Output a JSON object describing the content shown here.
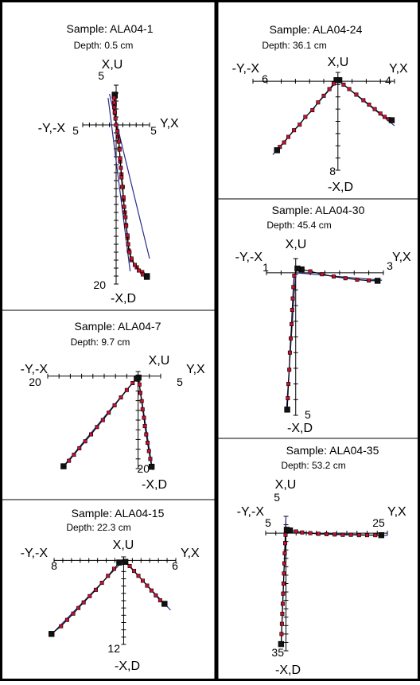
{
  "chart_data": [
    {
      "type": "scatter",
      "sample": "Sample: ALA04-1",
      "depth": "Depth: 0.5 cm",
      "axis_labels": {
        "top": "X,U",
        "bottom": "-X,D",
        "left": "-Y,-X",
        "right": "Y,X"
      },
      "tick_labels": {
        "left": "5",
        "right": "5",
        "top": "5",
        "bottom": "20"
      },
      "xlim": [
        -5,
        5
      ],
      "ylim": [
        -20,
        5
      ],
      "vertical_projection": [
        [
          -0.2,
          3.8
        ],
        [
          -0.3,
          3.4
        ],
        [
          -0.3,
          2.8
        ],
        [
          -0.3,
          2.2
        ],
        [
          -0.2,
          1.6
        ],
        [
          -0.1,
          0.8
        ],
        [
          0,
          0
        ],
        [
          0.2,
          -0.8
        ],
        [
          0.4,
          -2.1
        ],
        [
          0.5,
          -3.1
        ],
        [
          0.6,
          -4.2
        ],
        [
          0.7,
          -5.4
        ],
        [
          0.8,
          -6.6
        ],
        [
          0.9,
          -7.8
        ],
        [
          1.1,
          -9.1
        ],
        [
          1.2,
          -10.3
        ],
        [
          1.4,
          -11.6
        ],
        [
          1.5,
          -12.7
        ],
        [
          1.7,
          -13.9
        ],
        [
          1.8,
          -15.0
        ],
        [
          2.0,
          -16.0
        ],
        [
          2.3,
          -16.8
        ],
        [
          2.8,
          -17.6
        ],
        [
          3.4,
          -18.3
        ],
        [
          4.0,
          -18.8
        ],
        [
          4.6,
          -19.1
        ]
      ],
      "horizontal_projection": [
        [
          -0.2,
          3.7
        ],
        [
          -0.2,
          2.6
        ],
        [
          -0.2,
          1.5
        ],
        [
          0,
          0
        ],
        [
          0.3,
          -1.5
        ],
        [
          0.5,
          -3.0
        ],
        [
          0.6,
          -4.6
        ],
        [
          0.8,
          -6.2
        ],
        [
          1.0,
          -7.8
        ],
        [
          1.1,
          -9.4
        ],
        [
          1.3,
          -11.0
        ],
        [
          1.5,
          -12.6
        ],
        [
          1.7,
          -14.2
        ],
        [
          1.9,
          -15.8
        ],
        [
          2.3,
          -17.0
        ],
        [
          3.1,
          -17.9
        ],
        [
          3.9,
          -18.5
        ],
        [
          4.6,
          -19.0
        ]
      ],
      "fit_lines": [
        [
          [
            -1.2,
            3.4
          ],
          [
            2.1,
            -18.4
          ]
        ],
        [
          [
            -1.0,
            3.9
          ],
          [
            5.0,
            -16.8
          ]
        ]
      ]
    },
    {
      "type": "scatter",
      "sample": "Sample: ALA04-24",
      "depth": "Depth: 36.1 cm",
      "axis_labels": {
        "top": "X,U",
        "bottom": "-X,D",
        "left": "-Y,-X",
        "right": "Y,X"
      },
      "tick_labels": {
        "left": "6",
        "right": "4",
        "top": "",
        "bottom": "8"
      },
      "xlim": [
        -6,
        4
      ],
      "ylim": [
        -8,
        0.8
      ],
      "vertical_projection": [
        [
          -0.1,
          0.1
        ],
        [
          -0.3,
          -0.2
        ],
        [
          -0.6,
          -0.7
        ],
        [
          -1.0,
          -1.3
        ],
        [
          -1.4,
          -1.9
        ],
        [
          -1.8,
          -2.6
        ],
        [
          -2.3,
          -3.2
        ],
        [
          -2.7,
          -3.9
        ],
        [
          -3.1,
          -4.4
        ],
        [
          -3.5,
          -5.0
        ],
        [
          -3.8,
          -5.5
        ],
        [
          -4.1,
          -5.9
        ],
        [
          -4.3,
          -6.2
        ]
      ],
      "horizontal_projection": [
        [
          0.1,
          0.1
        ],
        [
          0.4,
          -0.3
        ],
        [
          0.8,
          -0.7
        ],
        [
          1.3,
          -1.2
        ],
        [
          1.8,
          -1.7
        ],
        [
          2.2,
          -2.1
        ],
        [
          2.6,
          -2.5
        ],
        [
          3.0,
          -2.9
        ],
        [
          3.3,
          -3.2
        ],
        [
          3.6,
          -3.4
        ],
        [
          3.8,
          -3.5
        ]
      ],
      "fit_lines": [
        [
          [
            -4.6,
            -6.6
          ],
          [
            0,
            0.1
          ]
        ],
        [
          [
            0,
            0.1
          ],
          [
            4.0,
            -4.0
          ]
        ]
      ]
    },
    {
      "type": "scatter",
      "sample": "Sample: ALA04-30",
      "depth": "Depth: 45.4 cm",
      "axis_labels": {
        "top": "X,U",
        "bottom": "-X,D",
        "left": "-Y,-X",
        "right": "Y,X"
      },
      "tick_labels": {
        "left": "1",
        "right": "3",
        "top": "",
        "bottom": "5"
      },
      "xlim": [
        -1,
        3
      ],
      "ylim": [
        -5,
        0.5
      ],
      "vertical_projection": [
        [
          0.06,
          0.15
        ],
        [
          -0.05,
          -0.1
        ],
        [
          -0.08,
          -0.5
        ],
        [
          -0.1,
          -0.9
        ],
        [
          -0.12,
          -1.3
        ],
        [
          -0.14,
          -1.8
        ],
        [
          -0.17,
          -2.3
        ],
        [
          -0.2,
          -2.8
        ],
        [
          -0.22,
          -3.4
        ],
        [
          -0.25,
          -3.9
        ],
        [
          -0.27,
          -4.4
        ],
        [
          -0.29,
          -4.8
        ]
      ],
      "horizontal_projection": [
        [
          0.2,
          0.12
        ],
        [
          0.5,
          0.05
        ],
        [
          0.9,
          -0.05
        ],
        [
          1.3,
          -0.13
        ],
        [
          1.7,
          -0.19
        ],
        [
          2.1,
          -0.24
        ],
        [
          2.5,
          -0.27
        ],
        [
          2.8,
          -0.28
        ]
      ],
      "fit_lines": [
        [
          [
            0,
            0
          ],
          [
            -0.32,
            -4.85
          ]
        ],
        [
          [
            0,
            0
          ],
          [
            2.95,
            -0.26
          ]
        ]
      ]
    },
    {
      "type": "scatter",
      "sample": "Sample: ALA04-7",
      "depth": "Depth: 9.7 cm",
      "axis_labels": {
        "top": "X,U",
        "bottom": "-X,D",
        "left": "-Y,-X",
        "right": "Y,X"
      },
      "tick_labels": {
        "left": "20",
        "right": "5",
        "top": "",
        "bottom": "20"
      },
      "xlim": [
        -20,
        5
      ],
      "ylim": [
        -20,
        1
      ],
      "vertical_projection": [
        [
          -0.3,
          -0.5
        ],
        [
          -1.2,
          -1.5
        ],
        [
          -2.5,
          -3.0
        ],
        [
          -3.8,
          -4.6
        ],
        [
          -5.2,
          -6.3
        ],
        [
          -6.5,
          -7.9
        ],
        [
          -7.8,
          -9.5
        ],
        [
          -9.1,
          -11.0
        ],
        [
          -10.4,
          -12.6
        ],
        [
          -11.7,
          -14.1
        ],
        [
          -13.0,
          -15.6
        ],
        [
          -14.2,
          -17.0
        ],
        [
          -15.3,
          -18.3
        ],
        [
          -16.5,
          -19.5
        ]
      ],
      "horizontal_projection": [
        [
          0.1,
          -0.3
        ],
        [
          0.3,
          -1.8
        ],
        [
          0.5,
          -3.6
        ],
        [
          0.8,
          -5.4
        ],
        [
          1.0,
          -7.2
        ],
        [
          1.3,
          -9.0
        ],
        [
          1.5,
          -10.8
        ],
        [
          1.8,
          -12.6
        ],
        [
          2.1,
          -14.4
        ],
        [
          2.4,
          -16.2
        ],
        [
          2.7,
          -17.9
        ],
        [
          3.0,
          -19.6
        ]
      ],
      "fit_lines": [
        [
          [
            -16.8,
            -19.8
          ],
          [
            0,
            0
          ]
        ],
        [
          [
            0,
            0
          ],
          [
            3.2,
            -20.3
          ]
        ]
      ]
    },
    {
      "type": "scatter",
      "sample": "Sample: ALA04-35",
      "depth": "Depth: 53.2 cm",
      "axis_labels": {
        "top": "X,U",
        "bottom": "-X,D",
        "left": "-Y,-X",
        "right": "Y,X"
      },
      "tick_labels": {
        "left": "5",
        "right": "25",
        "top": "5",
        "bottom": "35"
      },
      "xlim": [
        -5,
        25
      ],
      "ylim": [
        -35,
        5
      ],
      "vertical_projection": [
        [
          0.2,
          1.0
        ],
        [
          -0.1,
          -0.5
        ],
        [
          -0.2,
          -3.0
        ],
        [
          -0.3,
          -6.0
        ],
        [
          -0.4,
          -9.0
        ],
        [
          -0.5,
          -12.0
        ],
        [
          -0.6,
          -15.0
        ],
        [
          -0.7,
          -18.0
        ],
        [
          -0.8,
          -21.0
        ],
        [
          -0.9,
          -24.0
        ],
        [
          -1.0,
          -27.0
        ],
        [
          -1.1,
          -30.0
        ],
        [
          -1.2,
          -33.0
        ]
      ],
      "horizontal_projection": [
        [
          1.0,
          0.8
        ],
        [
          2.5,
          0.5
        ],
        [
          4.0,
          0.2
        ],
        [
          6.0,
          0
        ],
        [
          8.0,
          -0.2
        ],
        [
          10.0,
          -0.3
        ],
        [
          12.0,
          -0.4
        ],
        [
          14.0,
          -0.5
        ],
        [
          16.0,
          -0.5
        ],
        [
          18.0,
          -0.6
        ],
        [
          20.0,
          -0.6
        ],
        [
          22.0,
          -0.6
        ],
        [
          23.5,
          -0.6
        ]
      ],
      "fit_lines": [
        [
          [
            0,
            4.8
          ],
          [
            -1.2,
            -33.5
          ]
        ],
        [
          [
            0,
            0.2
          ],
          [
            25.0,
            -0.7
          ]
        ]
      ]
    },
    {
      "type": "scatter",
      "sample": "Sample: ALA04-15",
      "depth": "Depth: 22.3 cm",
      "axis_labels": {
        "top": "X,U",
        "bottom": "-X,D",
        "left": "-Y,-X",
        "right": "Y,X"
      },
      "tick_labels": {
        "left": "8",
        "right": "6",
        "top": "",
        "bottom": "12"
      },
      "xlim": [
        -8,
        6
      ],
      "ylim": [
        -12,
        0.5
      ],
      "vertical_projection": [
        [
          -0.5,
          -0.3
        ],
        [
          -1.1,
          -1.2
        ],
        [
          -1.8,
          -2.2
        ],
        [
          -2.5,
          -3.2
        ],
        [
          -3.2,
          -4.2
        ],
        [
          -3.9,
          -5.1
        ],
        [
          -4.6,
          -6.0
        ],
        [
          -5.2,
          -6.8
        ],
        [
          -5.8,
          -7.6
        ],
        [
          -6.5,
          -8.5
        ],
        [
          -7.2,
          -9.4
        ],
        [
          -8.3,
          -10.5
        ]
      ],
      "horizontal_projection": [
        [
          0.2,
          -0.2
        ],
        [
          0.7,
          -0.8
        ],
        [
          1.2,
          -1.5
        ],
        [
          1.7,
          -2.2
        ],
        [
          2.2,
          -2.9
        ],
        [
          2.7,
          -3.6
        ],
        [
          3.2,
          -4.3
        ],
        [
          3.7,
          -5.0
        ],
        [
          4.2,
          -5.7
        ],
        [
          4.7,
          -6.2
        ]
      ],
      "fit_lines": [
        [
          [
            -8.4,
            -10.7
          ],
          [
            0,
            0
          ]
        ],
        [
          [
            0,
            0
          ],
          [
            5.4,
            -7.1
          ]
        ]
      ]
    }
  ]
}
